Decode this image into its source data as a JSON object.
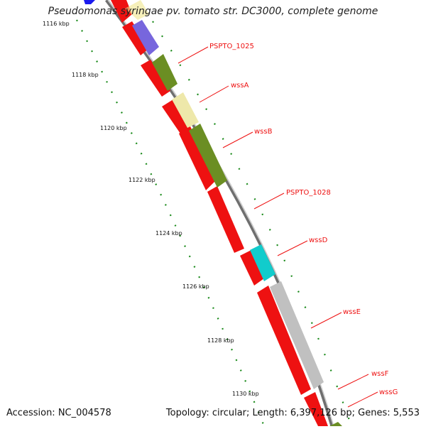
{
  "title": "Pseudomonas syringae pv. tomato str. DC3000, complete genome",
  "footer": {
    "accession": "Accession: NC_004578",
    "summary": "Topology: circular; Length: 6,397,126 bp; Genes: 5,553"
  },
  "ticks": [
    "1116 kbp",
    "1118 kbp",
    "1120 kbp",
    "1122 kbp",
    "1124 kbp",
    "1126 kbp",
    "1128 kbp",
    "1130 kbp"
  ],
  "gene_labels": [
    "PSPTO_1025",
    "wssA",
    "wssB",
    "PSPTO_1028",
    "wssD",
    "wssE",
    "wssF",
    "wssG"
  ],
  "colors": {
    "cds": "#ee1111",
    "backbone": "#8a8a8a",
    "tick_dots": "#1a8a1a",
    "gene_blue": "#1a1aee",
    "gene_purple": "#7766dd",
    "gene_olive": "#6b8e23",
    "gene_khaki": "#eee8aa",
    "gene_cyan": "#11cccc",
    "gene_silver": "#c0c0c0"
  }
}
